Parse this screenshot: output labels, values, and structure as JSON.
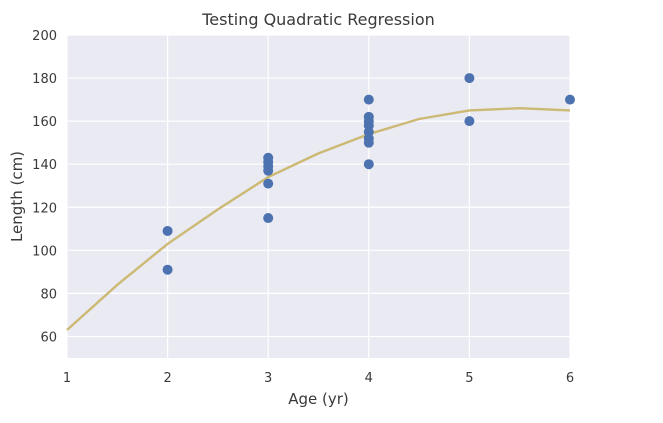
{
  "chart_data": {
    "type": "scatter",
    "title": "Testing Quadratic Regression",
    "xlabel": "Age (yr)",
    "ylabel": "Length (cm)",
    "xlim": [
      1,
      6
    ],
    "ylim": [
      50,
      200
    ],
    "xticks": [
      1,
      2,
      3,
      4,
      5,
      6
    ],
    "yticks": [
      60,
      80,
      100,
      120,
      140,
      160,
      180,
      200
    ],
    "grid": true,
    "colors": {
      "background": "#eaeaf2",
      "grid": "#ffffff",
      "points": "#4c72b0",
      "curve": "#ccb974"
    },
    "series": [
      {
        "kind": "scatter",
        "points": [
          {
            "x": 2,
            "y": 109
          },
          {
            "x": 2,
            "y": 91
          },
          {
            "x": 3,
            "y": 143
          },
          {
            "x": 3,
            "y": 141
          },
          {
            "x": 3,
            "y": 139
          },
          {
            "x": 3,
            "y": 137
          },
          {
            "x": 3,
            "y": 131
          },
          {
            "x": 3,
            "y": 115
          },
          {
            "x": 4,
            "y": 170
          },
          {
            "x": 4,
            "y": 162
          },
          {
            "x": 4,
            "y": 160
          },
          {
            "x": 4,
            "y": 158
          },
          {
            "x": 4,
            "y": 155
          },
          {
            "x": 4,
            "y": 152
          },
          {
            "x": 4,
            "y": 150
          },
          {
            "x": 4,
            "y": 140
          },
          {
            "x": 5,
            "y": 180
          },
          {
            "x": 5,
            "y": 160
          },
          {
            "x": 6,
            "y": 170
          }
        ]
      },
      {
        "kind": "line",
        "points": [
          {
            "x": 1,
            "y": 63
          },
          {
            "x": 1.5,
            "y": 84
          },
          {
            "x": 2,
            "y": 103
          },
          {
            "x": 2.5,
            "y": 119
          },
          {
            "x": 3,
            "y": 134
          },
          {
            "x": 3.5,
            "y": 145
          },
          {
            "x": 4,
            "y": 154
          },
          {
            "x": 4.5,
            "y": 161
          },
          {
            "x": 5,
            "y": 165
          },
          {
            "x": 5.5,
            "y": 166
          },
          {
            "x": 6,
            "y": 165
          }
        ]
      }
    ]
  }
}
